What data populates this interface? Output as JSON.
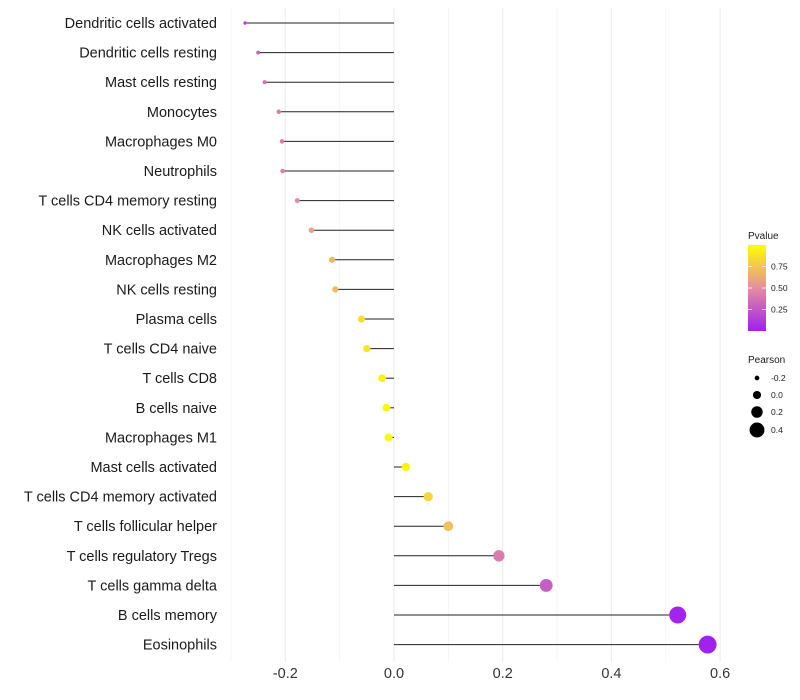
{
  "chart_data": {
    "type": "lollipop",
    "title": "",
    "xlabel": "",
    "ylabel": "",
    "xlim": [
      -0.3,
      0.6
    ],
    "x_ticks": [
      -0.2,
      0.0,
      0.2,
      0.4,
      0.6
    ],
    "x_tick_labels": [
      "-0.2",
      "0.0",
      "0.2",
      "0.4",
      "0.6"
    ],
    "grid": true,
    "categories": [
      "Dendritic cells activated",
      "Dendritic cells resting",
      "Mast cells resting",
      "Monocytes",
      "Macrophages M0",
      "Neutrophils",
      "T cells CD4 memory resting",
      "NK cells activated",
      "Macrophages M2",
      "NK cells resting",
      "Plasma cells",
      "T cells CD4 naive",
      "T cells CD8",
      "B cells naive",
      "Macrophages M1",
      "Mast cells activated",
      "T cells CD4 memory activated",
      "T cells follicular helper",
      "T cells regulatory  Tregs ",
      "T cells gamma delta",
      "B cells memory",
      "Eosinophils"
    ],
    "pearson": [
      -0.274,
      -0.25,
      -0.238,
      -0.212,
      -0.206,
      -0.205,
      -0.178,
      -0.152,
      -0.114,
      -0.108,
      -0.06,
      -0.05,
      -0.022,
      -0.014,
      -0.01,
      0.022,
      0.063,
      0.1,
      0.193,
      0.28,
      0.522,
      0.577
    ],
    "pvalue": [
      0.18,
      0.3,
      0.38,
      0.42,
      0.43,
      0.43,
      0.5,
      0.57,
      0.68,
      0.71,
      0.85,
      0.88,
      0.95,
      0.97,
      0.98,
      0.95,
      0.82,
      0.72,
      0.42,
      0.28,
      0.02,
      0.01
    ],
    "legend_pvalue": {
      "title": "Pvalue",
      "ticks": [
        0.25,
        0.5,
        0.75
      ],
      "tick_labels": [
        "0.25",
        "0.50",
        "0.75"
      ],
      "range": [
        0.0,
        1.0
      ],
      "color_low": "#a020f0",
      "color_mid": "#e48ea0",
      "color_high": "#ffff00",
      "placement": "right"
    },
    "legend_pearson": {
      "title": "Pearson",
      "values": [
        -0.2,
        0.0,
        0.2,
        0.4
      ],
      "labels": [
        "-0.2",
        "0.0",
        "0.2",
        "0.4"
      ],
      "placement": "right"
    }
  }
}
